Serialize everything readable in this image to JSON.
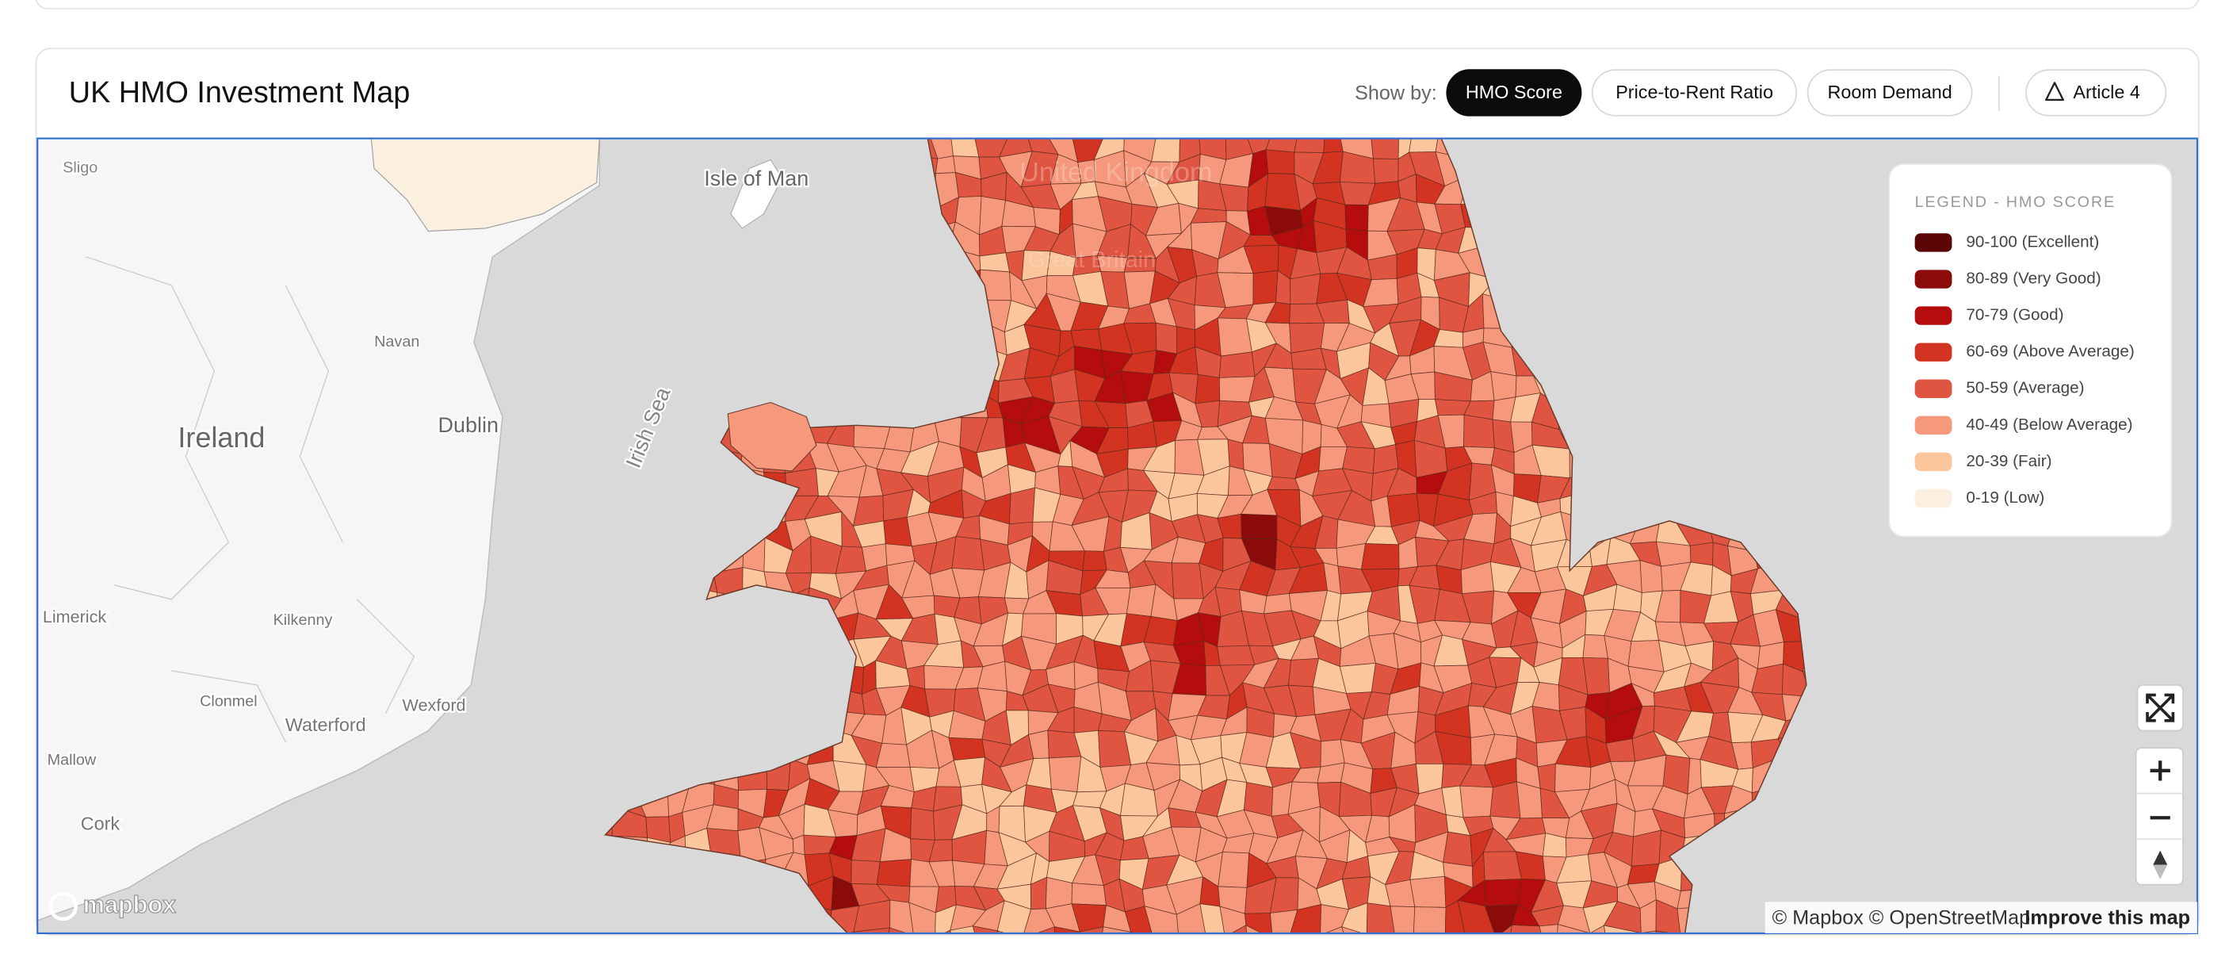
{
  "header": {
    "title": "UK HMO Investment Map",
    "show_by_label": "Show by:",
    "tabs": [
      {
        "label": "HMO Score",
        "active": true
      },
      {
        "label": "Price-to-Rent Ratio",
        "active": false
      },
      {
        "label": "Room Demand",
        "active": false
      }
    ],
    "article_button": "Article 4"
  },
  "legend": {
    "title": "LEGEND - HMO SCORE",
    "items": [
      {
        "label": "90-100 (Excellent)",
        "color": "#5a0606"
      },
      {
        "label": "80-89 (Very Good)",
        "color": "#8b0b0b"
      },
      {
        "label": "70-79 (Good)",
        "color": "#b50d0d"
      },
      {
        "label": "60-69 (Above Average)",
        "color": "#d33422"
      },
      {
        "label": "50-59 (Average)",
        "color": "#e05442"
      },
      {
        "label": "40-49 (Below Average)",
        "color": "#f5987c"
      },
      {
        "label": "20-39 (Fair)",
        "color": "#fcc69c"
      },
      {
        "label": "0-19 (Low)",
        "color": "#fbefdf"
      }
    ]
  },
  "map": {
    "labels": [
      "Sligo",
      "Isle of Man",
      "Ireland",
      "Dublin",
      "Navan",
      "Irish Sea",
      "Limerick",
      "Kilkenny",
      "Clonmel",
      "Wexford",
      "Waterford",
      "Mallow",
      "Cork",
      "United Kingdom",
      "Great Britain"
    ]
  },
  "attribution": {
    "logo": "mapbox",
    "credits": "© Mapbox © OpenStreetMap",
    "improve": "Improve this map"
  }
}
